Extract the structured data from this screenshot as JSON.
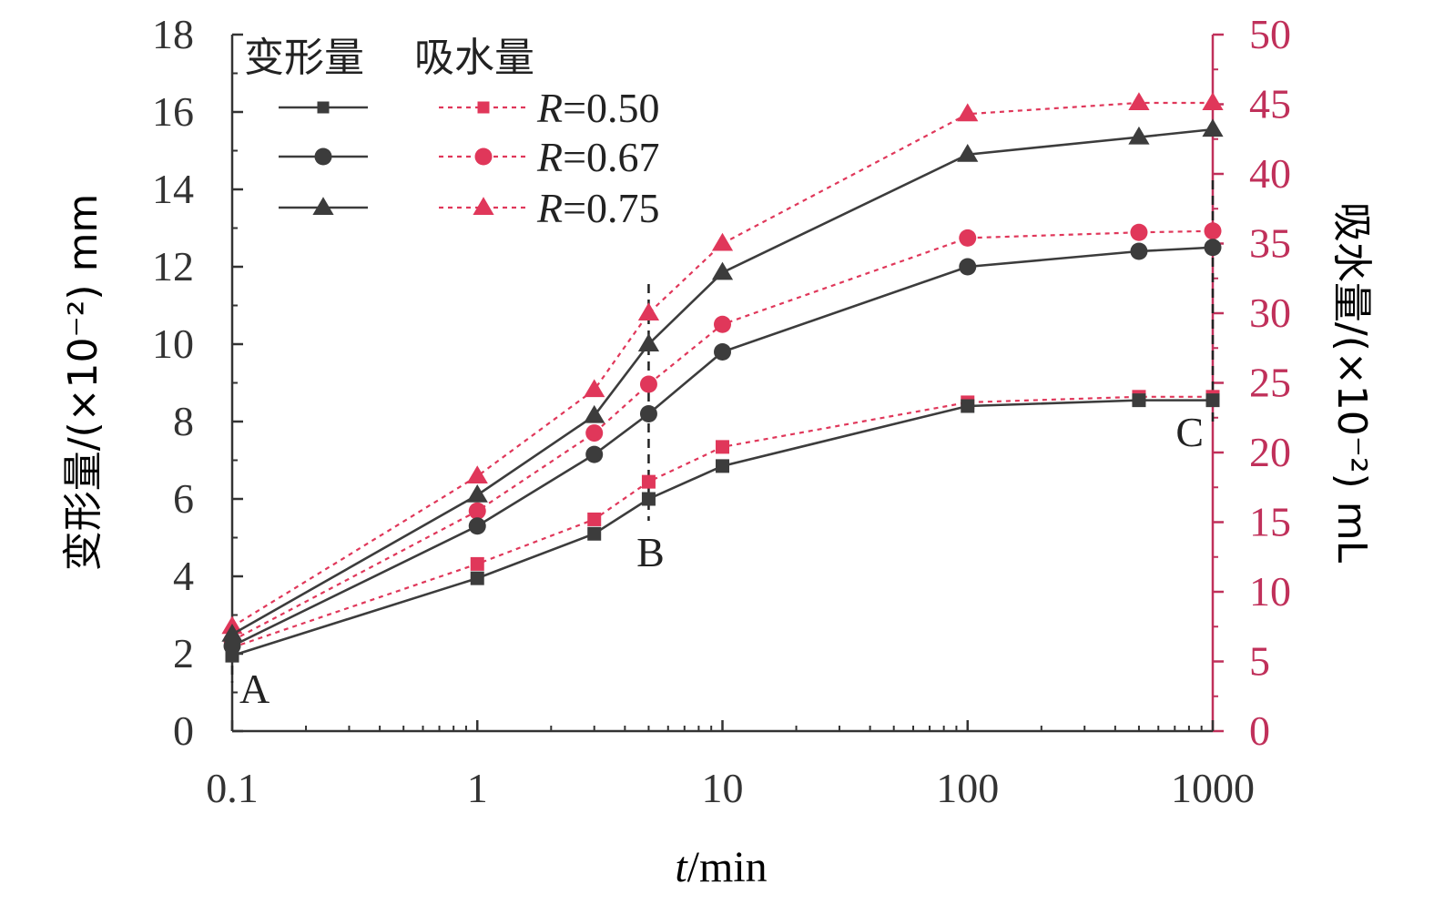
{
  "chart_data": {
    "type": "line",
    "x": [
      0.1,
      1,
      3,
      5,
      10,
      100,
      500,
      1000
    ],
    "x_tick_labels": [
      "0.1",
      "1",
      "10",
      "100",
      "1000"
    ],
    "x_scale": "log",
    "xlim": [
      0.1,
      1000
    ],
    "xlabel": "t/min",
    "xlabel_italic": "t",
    "xlabel_rest": "/min",
    "ylabel_left": "变形量/(×10⁻²) mm",
    "ylim_left": [
      0,
      18
    ],
    "yticks_left": [
      "0",
      "2",
      "4",
      "6",
      "8",
      "10",
      "12",
      "14",
      "16",
      "18"
    ],
    "ylabel_right": "吸水量/(×10⁻²) mL",
    "ylim_right": [
      0,
      50
    ],
    "yticks_right": [
      "0",
      "5",
      "10",
      "15",
      "20",
      "25",
      "30",
      "35",
      "40",
      "45",
      "50"
    ],
    "legend": {
      "header_deformation": "变形量",
      "header_absorption": "吸水量",
      "entries": [
        {
          "r_italic": "R",
          "r_value": "=0.50",
          "marker": "square"
        },
        {
          "r_italic": "R",
          "r_value": "=0.67",
          "marker": "circle"
        },
        {
          "r_italic": "R",
          "r_value": "=0.75",
          "marker": "triangle"
        }
      ]
    },
    "series": [
      {
        "group": "deformation",
        "axis": "left",
        "marker": "square",
        "color": "#3c3c3c",
        "dash": "solid",
        "values": [
          1.95,
          3.95,
          5.1,
          6.0,
          6.85,
          8.4,
          8.55,
          8.55
        ]
      },
      {
        "group": "deformation",
        "axis": "left",
        "marker": "circle",
        "color": "#3c3c3c",
        "dash": "solid",
        "values": [
          2.2,
          5.3,
          7.15,
          8.2,
          9.8,
          12.0,
          12.4,
          12.5
        ]
      },
      {
        "group": "deformation",
        "axis": "left",
        "marker": "triangle",
        "color": "#3c3c3c",
        "dash": "solid",
        "values": [
          2.5,
          6.1,
          8.15,
          10.0,
          11.85,
          14.9,
          15.35,
          15.55
        ]
      },
      {
        "group": "absorption",
        "axis": "right",
        "marker": "square",
        "color": "#e0375a",
        "dash": "dotted",
        "values": [
          6.0,
          12.0,
          15.2,
          17.9,
          20.4,
          23.6,
          24.0,
          24.0
        ]
      },
      {
        "group": "absorption",
        "axis": "right",
        "marker": "circle",
        "color": "#e0375a",
        "dash": "dotted",
        "values": [
          6.5,
          15.8,
          21.4,
          24.9,
          29.2,
          35.4,
          35.8,
          35.9
        ]
      },
      {
        "group": "absorption",
        "axis": "right",
        "marker": "triangle",
        "color": "#e0375a",
        "dash": "dotted",
        "values": [
          7.5,
          18.3,
          24.5,
          30.0,
          35.0,
          44.3,
          45.1,
          45.1
        ]
      }
    ],
    "reference_lines": [
      {
        "label": "A",
        "x": 0.1
      },
      {
        "label": "B",
        "x": 5
      },
      {
        "label": "C",
        "x": 1000
      }
    ],
    "colors": {
      "deformation": "#3c3c3c",
      "absorption": "#e0375a",
      "right_axis": "#c0305a",
      "axis": "#333333"
    }
  }
}
